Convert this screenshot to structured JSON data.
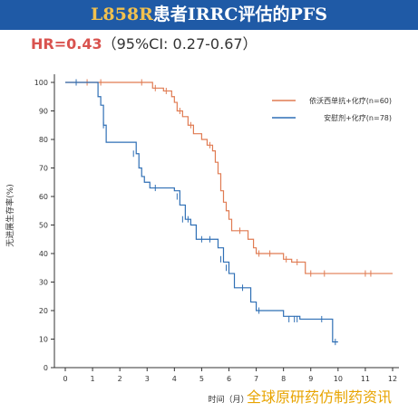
{
  "title": {
    "highlight": "L858R",
    "rest": "患者IRRC评估的PFS"
  },
  "hr": {
    "value": "HR=0.43",
    "ci": "（95%CI: 0.27-0.67）"
  },
  "watermark": "全球原研药仿制药资讯",
  "chart_data": {
    "type": "line",
    "xlabel": "时间（月）",
    "ylabel": "无进展生存率(%)",
    "xlim": [
      0,
      12
    ],
    "ylim": [
      0,
      100
    ],
    "xticks": [
      "0",
      "1",
      "2",
      "3",
      "4",
      "5",
      "6",
      "7",
      "8",
      "9",
      "10",
      "11",
      "12"
    ],
    "yticks": [
      "0",
      "10",
      "20",
      "30",
      "40",
      "50",
      "60",
      "70",
      "80",
      "90",
      "100"
    ],
    "legend_position": "top-right",
    "series": [
      {
        "name": "依沃西单抗+化疗(n=60)",
        "color": "#e07b52",
        "step": [
          [
            0,
            100
          ],
          [
            3.0,
            100
          ],
          [
            3.2,
            98
          ],
          [
            3.6,
            97
          ],
          [
            3.9,
            95
          ],
          [
            4.0,
            93
          ],
          [
            4.1,
            90
          ],
          [
            4.3,
            88
          ],
          [
            4.5,
            85
          ],
          [
            4.7,
            82
          ],
          [
            5.0,
            80
          ],
          [
            5.2,
            78
          ],
          [
            5.4,
            76
          ],
          [
            5.5,
            72
          ],
          [
            5.6,
            68
          ],
          [
            5.7,
            62
          ],
          [
            5.8,
            58
          ],
          [
            5.9,
            55
          ],
          [
            6.0,
            52
          ],
          [
            6.1,
            48
          ],
          [
            6.7,
            45
          ],
          [
            6.9,
            42
          ],
          [
            7.0,
            40
          ],
          [
            8.0,
            38
          ],
          [
            8.3,
            37
          ],
          [
            8.8,
            33
          ],
          [
            12.0,
            33
          ]
        ],
        "censors": [
          [
            0.8,
            100
          ],
          [
            1.3,
            100
          ],
          [
            2.8,
            100
          ],
          [
            3.3,
            98
          ],
          [
            3.7,
            97
          ],
          [
            4.2,
            90
          ],
          [
            4.6,
            85
          ],
          [
            5.3,
            78
          ],
          [
            6.4,
            48
          ],
          [
            7.1,
            40
          ],
          [
            7.5,
            40
          ],
          [
            8.1,
            38
          ],
          [
            8.5,
            37
          ],
          [
            9.0,
            33
          ],
          [
            9.5,
            33
          ],
          [
            11.0,
            33
          ],
          [
            11.2,
            33
          ]
        ]
      },
      {
        "name": "安慰剂+化疗(n=78)",
        "color": "#2f6fb5",
        "step": [
          [
            0,
            100
          ],
          [
            1.0,
            100
          ],
          [
            1.2,
            95
          ],
          [
            1.3,
            92
          ],
          [
            1.4,
            85
          ],
          [
            1.5,
            79
          ],
          [
            2.6,
            75
          ],
          [
            2.7,
            70
          ],
          [
            2.8,
            67
          ],
          [
            2.9,
            65
          ],
          [
            3.1,
            63
          ],
          [
            4.0,
            62
          ],
          [
            4.2,
            57
          ],
          [
            4.4,
            52
          ],
          [
            4.6,
            50
          ],
          [
            4.8,
            45
          ],
          [
            5.6,
            42
          ],
          [
            5.8,
            37
          ],
          [
            6.0,
            33
          ],
          [
            6.2,
            28
          ],
          [
            6.8,
            23
          ],
          [
            7.0,
            20
          ],
          [
            8.0,
            18
          ],
          [
            8.6,
            17
          ],
          [
            9.7,
            17
          ],
          [
            9.8,
            9
          ],
          [
            10.0,
            9
          ]
        ],
        "censors": [
          [
            0.4,
            100
          ],
          [
            1.4,
            85
          ],
          [
            2.5,
            75
          ],
          [
            3.3,
            63
          ],
          [
            4.1,
            60
          ],
          [
            4.3,
            52
          ],
          [
            4.5,
            52
          ],
          [
            5.0,
            45
          ],
          [
            5.3,
            45
          ],
          [
            5.7,
            38
          ],
          [
            5.9,
            35
          ],
          [
            6.5,
            28
          ],
          [
            7.1,
            20
          ],
          [
            8.2,
            17
          ],
          [
            8.4,
            17
          ],
          [
            8.5,
            17
          ],
          [
            9.4,
            17
          ],
          [
            9.9,
            9
          ]
        ]
      }
    ]
  }
}
